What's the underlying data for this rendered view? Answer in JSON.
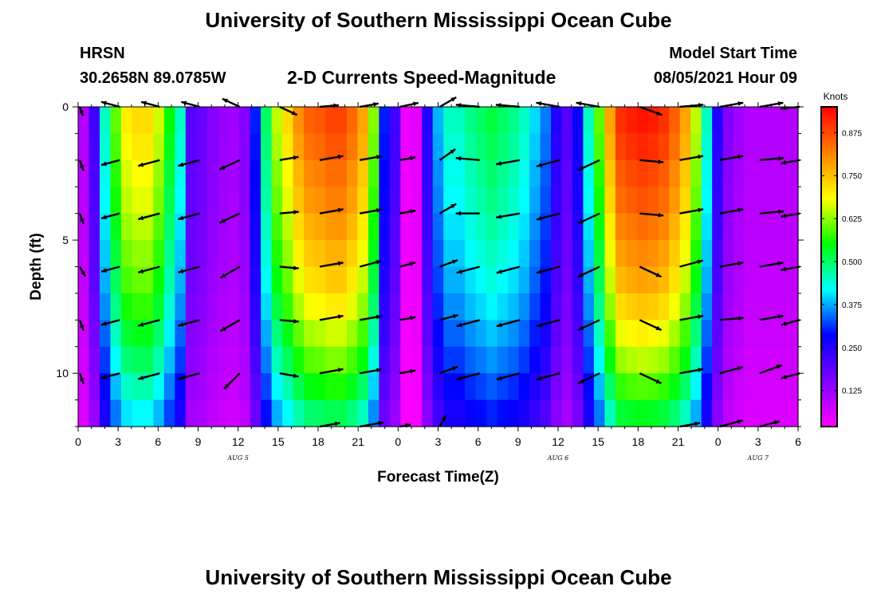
{
  "header": {
    "title": "University of Southern Mississippi Ocean Cube",
    "station": "HRSN",
    "coords": "30.2658N  89.0785W",
    "subtitle": "2-D Currents Speed-Magnitude",
    "model_label": "Model Start Time",
    "model_time": "08/05/2021 Hour 09"
  },
  "footer": {
    "title": "University of Southern Mississippi Ocean Cube"
  },
  "chart_data": {
    "type": "heatmap",
    "title": "2-D Currents Speed-Magnitude",
    "xlabel": "Forecast Time(Z)",
    "ylabel": "Depth (ft)",
    "x_hours_since_aug5_00z": [
      0,
      54
    ],
    "x_tick_labels": [
      "0",
      "3",
      "6",
      "9",
      "12",
      "15",
      "18",
      "21",
      "0",
      "3",
      "6",
      "9",
      "12",
      "15",
      "18",
      "21",
      "0",
      "3",
      "6"
    ],
    "date_labels": [
      {
        "label": "AUG 5",
        "hour": 12
      },
      {
        "label": "AUG 6",
        "hour": 36
      },
      {
        "label": "AUG 7",
        "hour": 51
      }
    ],
    "ylim": [
      0,
      12
    ],
    "y_ticks": [
      0,
      5,
      10
    ],
    "colorbar": {
      "unit": "Knots",
      "range": [
        0.02,
        0.95
      ],
      "ticks": [
        "0.875",
        "0.750",
        "0.625",
        "0.500",
        "0.375",
        "0.250",
        "0.125"
      ],
      "tick_values": [
        0.875,
        0.75,
        0.625,
        0.5,
        0.375,
        0.25,
        0.125
      ],
      "colors": [
        "#ff00ff",
        "#8000ff",
        "#0000ff",
        "#00ffff",
        "#00ff00",
        "#ffff00",
        "#ff8000",
        "#ff0000"
      ]
    },
    "depth_profile": [
      1.0,
      0.98,
      0.95,
      0.93,
      0.9,
      0.87,
      0.84,
      0.8,
      0.75,
      0.7,
      0.64,
      0.58
    ],
    "surface_speed_by_hour": [
      0.1,
      0.22,
      0.45,
      0.6,
      0.7,
      0.72,
      0.72,
      0.66,
      0.55,
      0.45,
      0.2,
      0.18,
      0.15,
      0.13,
      0.12,
      0.15,
      0.3,
      0.5,
      0.65,
      0.72,
      0.8,
      0.85,
      0.86,
      0.88,
      0.88,
      0.84,
      0.78,
      0.62,
      0.3,
      0.22,
      0.04,
      0.05,
      0.25,
      0.38,
      0.45,
      0.45,
      0.48,
      0.5,
      0.52,
      0.5,
      0.48,
      0.45,
      0.4,
      0.35,
      0.25,
      0.2,
      0.28,
      0.45,
      0.6,
      0.78,
      0.9,
      0.92,
      0.93,
      0.92,
      0.9,
      0.85,
      0.78,
      0.65,
      0.45,
      0.25,
      0.15,
      0.12,
      0.1,
      0.1,
      0.1,
      0.1,
      0.1
    ],
    "vector_hours": [
      0,
      3,
      6,
      9,
      12,
      15,
      18,
      21,
      24,
      27,
      30,
      33,
      36,
      39,
      42,
      45,
      48,
      51,
      54
    ],
    "vector_depths": [
      0,
      2,
      4,
      6,
      8,
      10,
      12
    ],
    "vector_directions_deg": [
      [
        -70,
        -15,
        -15,
        -15,
        -25,
        -25,
        5,
        10,
        12,
        30,
        -5,
        -5,
        -10,
        -10,
        -20,
        5,
        10,
        10,
        5
      ],
      [
        -70,
        15,
        15,
        15,
        25,
        10,
        10,
        10,
        10,
        35,
        -5,
        10,
        15,
        25,
        -5,
        10,
        10,
        5,
        10
      ],
      [
        -70,
        15,
        15,
        15,
        25,
        5,
        10,
        10,
        10,
        30,
        0,
        10,
        15,
        25,
        -5,
        10,
        10,
        5,
        10
      ],
      [
        -60,
        15,
        15,
        15,
        30,
        -5,
        10,
        15,
        15,
        20,
        15,
        15,
        15,
        25,
        -25,
        15,
        10,
        10,
        10
      ],
      [
        -70,
        15,
        15,
        15,
        30,
        -5,
        10,
        10,
        10,
        15,
        15,
        15,
        15,
        25,
        -25,
        10,
        5,
        10,
        15
      ],
      [
        -70,
        15,
        15,
        15,
        45,
        -10,
        10,
        10,
        10,
        20,
        15,
        15,
        15,
        25,
        -25,
        10,
        15,
        20,
        15
      ],
      [
        0,
        0,
        0,
        0,
        0,
        0,
        10,
        10,
        10,
        60,
        0,
        0,
        0,
        0,
        0,
        10,
        15,
        15,
        0
      ]
    ],
    "vector_lengths_px": [
      [
        12,
        24,
        24,
        24,
        24,
        24,
        24,
        24,
        24,
        24,
        30,
        30,
        30,
        30,
        30,
        30,
        30,
        30,
        24
      ],
      [
        14,
        24,
        28,
        28,
        28,
        24,
        30,
        28,
        20,
        24,
        30,
        30,
        30,
        30,
        30,
        30,
        30,
        30,
        24
      ],
      [
        14,
        24,
        28,
        28,
        28,
        24,
        30,
        28,
        20,
        24,
        30,
        30,
        30,
        30,
        30,
        30,
        30,
        30,
        24
      ],
      [
        14,
        24,
        28,
        28,
        28,
        24,
        30,
        28,
        20,
        24,
        30,
        30,
        30,
        30,
        30,
        30,
        30,
        30,
        24
      ],
      [
        14,
        24,
        28,
        28,
        28,
        24,
        30,
        28,
        20,
        24,
        30,
        30,
        30,
        30,
        30,
        30,
        30,
        30,
        24
      ],
      [
        14,
        24,
        28,
        28,
        28,
        24,
        30,
        28,
        20,
        24,
        30,
        30,
        30,
        30,
        30,
        30,
        30,
        30,
        24
      ],
      [
        0,
        0,
        0,
        0,
        0,
        0,
        26,
        30,
        14,
        16,
        0,
        0,
        0,
        0,
        0,
        26,
        30,
        26,
        0
      ]
    ],
    "vector_flip": [
      [
        0,
        1,
        1,
        1,
        1,
        0,
        0,
        0,
        0,
        0,
        1,
        1,
        1,
        1,
        0,
        0,
        0,
        0,
        1
      ],
      [
        0,
        1,
        1,
        1,
        1,
        0,
        0,
        0,
        0,
        0,
        1,
        1,
        1,
        1,
        0,
        0,
        0,
        0,
        1
      ],
      [
        0,
        1,
        1,
        1,
        1,
        0,
        0,
        0,
        0,
        0,
        1,
        1,
        1,
        1,
        0,
        0,
        0,
        0,
        1
      ],
      [
        0,
        1,
        1,
        1,
        1,
        0,
        0,
        0,
        0,
        0,
        1,
        1,
        1,
        1,
        0,
        0,
        0,
        0,
        1
      ],
      [
        0,
        1,
        1,
        1,
        1,
        0,
        0,
        0,
        0,
        0,
        1,
        1,
        1,
        1,
        0,
        0,
        0,
        0,
        1
      ],
      [
        0,
        1,
        1,
        1,
        1,
        0,
        0,
        0,
        0,
        0,
        1,
        1,
        1,
        1,
        0,
        0,
        0,
        0,
        1
      ],
      [
        0,
        0,
        0,
        0,
        0,
        0,
        0,
        0,
        0,
        0,
        0,
        0,
        0,
        0,
        0,
        0,
        0,
        0,
        0
      ]
    ]
  }
}
